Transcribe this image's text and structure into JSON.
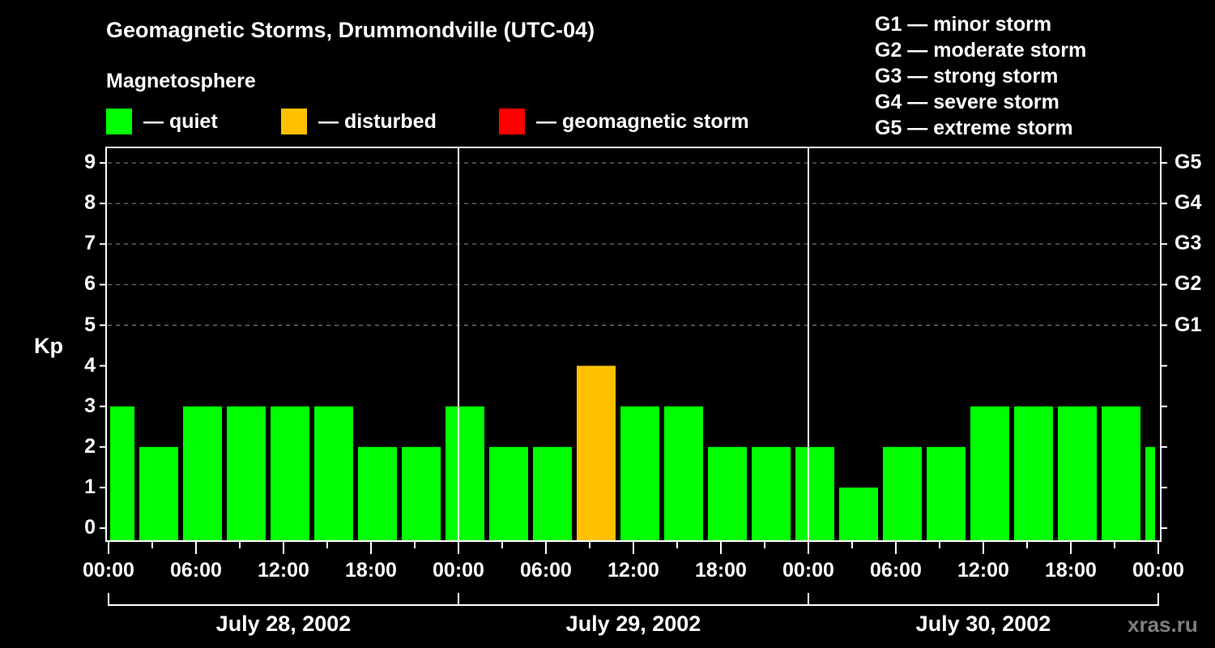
{
  "header": {
    "title": "Geomagnetic Storms, Drummondville (UTC-04)",
    "subtitle": "Magnetosphere"
  },
  "legend": [
    {
      "label": "— quiet",
      "color": "#00ff00"
    },
    {
      "label": "— disturbed",
      "color": "#ffc000"
    },
    {
      "label": "— geomagnetic storm",
      "color": "#ff0000"
    }
  ],
  "storm_scale": [
    "G1 — minor storm",
    "G2 — moderate storm",
    "G3 — strong storm",
    "G4 — severe storm",
    "G5 — extreme storm"
  ],
  "axes": {
    "y_label": "Kp",
    "y_ticks": [
      "0",
      "1",
      "2",
      "3",
      "4",
      "5",
      "6",
      "7",
      "8",
      "9"
    ],
    "g_ticks": [
      {
        "kp": 5,
        "label": "G1"
      },
      {
        "kp": 6,
        "label": "G2"
      },
      {
        "kp": 7,
        "label": "G3"
      },
      {
        "kp": 8,
        "label": "G4"
      },
      {
        "kp": 9,
        "label": "G5"
      }
    ],
    "x_ticks": [
      "00:00",
      "06:00",
      "12:00",
      "18:00",
      "00:00",
      "06:00",
      "12:00",
      "18:00",
      "00:00",
      "06:00",
      "12:00",
      "18:00",
      "00:00"
    ],
    "dates": [
      "July 28, 2002",
      "July 29, 2002",
      "July 30, 2002"
    ]
  },
  "watermark": "xras.ru",
  "chart_data": {
    "type": "bar",
    "title": "Geomagnetic Storms, Drummondville (UTC-04)",
    "xlabel": "",
    "ylabel": "Kp",
    "ylim": [
      0,
      9
    ],
    "grid": "dashed horizontal at Kp 5-9",
    "x_range_hours": [
      0,
      72
    ],
    "slot_hours": 3,
    "first_slot_start_hour": -1,
    "categories": [
      "Jul 28 23:00-02:00",
      "Jul 28 02:00-05:00",
      "Jul 28 05:00-08:00",
      "Jul 28 08:00-11:00",
      "Jul 28 11:00-14:00",
      "Jul 28 14:00-17:00",
      "Jul 28 17:00-20:00",
      "Jul 28 20:00-23:00",
      "Jul 28 23:00-02:00",
      "Jul 29 02:00-05:00",
      "Jul 29 05:00-08:00",
      "Jul 29 08:00-11:00",
      "Jul 29 11:00-14:00",
      "Jul 29 14:00-17:00",
      "Jul 29 17:00-20:00",
      "Jul 29 20:00-23:00",
      "Jul 29 23:00-02:00",
      "Jul 30 02:00-05:00",
      "Jul 30 05:00-08:00",
      "Jul 30 08:00-11:00",
      "Jul 30 11:00-14:00",
      "Jul 30 14:00-17:00",
      "Jul 30 17:00-20:00",
      "Jul 30 20:00-23:00",
      "Jul 30 23:00-02:00"
    ],
    "values": [
      3,
      2,
      3,
      3,
      3,
      3,
      2,
      2,
      3,
      2,
      2,
      4,
      3,
      3,
      2,
      2,
      2,
      1,
      2,
      2,
      3,
      3,
      3,
      3,
      2
    ],
    "status": [
      "quiet",
      "quiet",
      "quiet",
      "quiet",
      "quiet",
      "quiet",
      "quiet",
      "quiet",
      "quiet",
      "quiet",
      "quiet",
      "disturbed",
      "quiet",
      "quiet",
      "quiet",
      "quiet",
      "quiet",
      "quiet",
      "quiet",
      "quiet",
      "quiet",
      "quiet",
      "quiet",
      "quiet",
      "quiet"
    ],
    "colors": {
      "quiet": "#00ff00",
      "disturbed": "#ffc000",
      "storm": "#ff0000"
    },
    "legend": [
      "quiet",
      "disturbed",
      "geomagnetic storm"
    ],
    "right_axis": {
      "5": "G1",
      "6": "G2",
      "7": "G3",
      "8": "G4",
      "9": "G5"
    }
  }
}
